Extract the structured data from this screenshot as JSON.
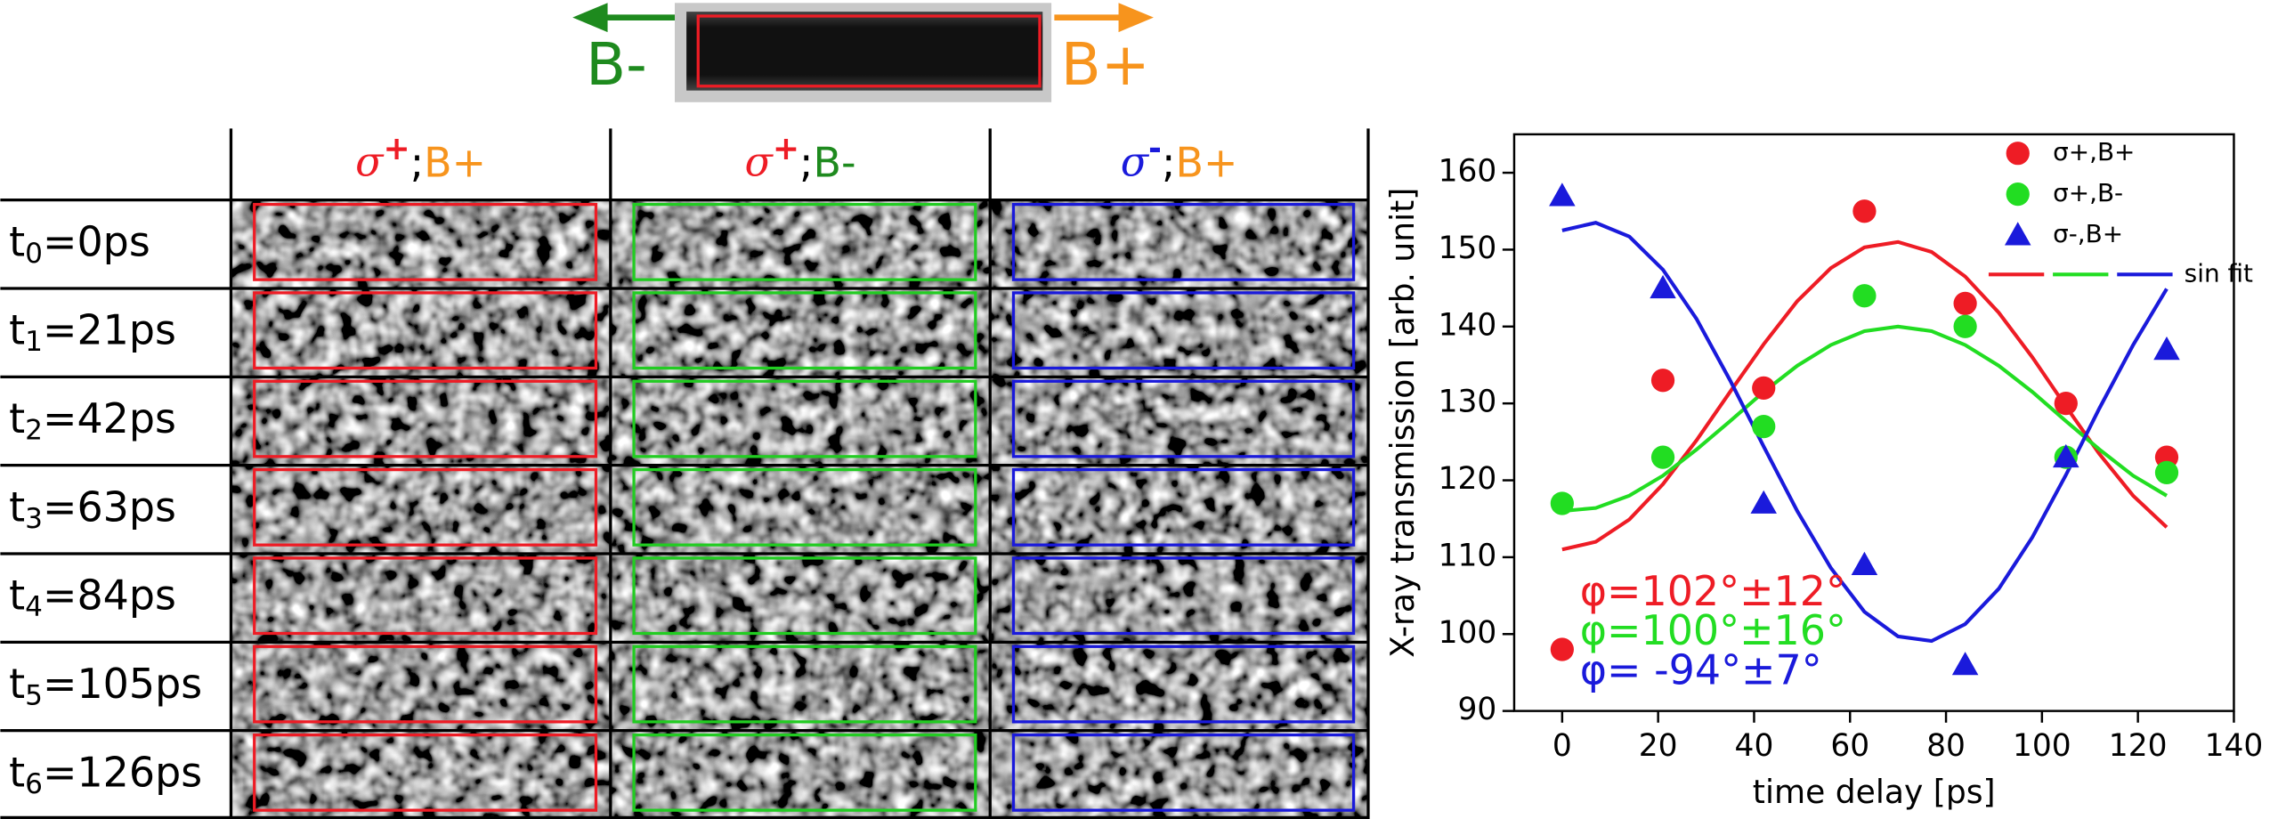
{
  "header": {
    "left_label": "B-",
    "right_label": "B+",
    "left_color": "#1e8a1e",
    "right_color": "#f7941d"
  },
  "table": {
    "columns": [
      {
        "sigma": "σ",
        "sign": "+",
        "sep": ";",
        "field": "B+",
        "sigma_color": "#ee1c25",
        "field_color": "#f7941d",
        "color": "#ee1c25"
      },
      {
        "sigma": "σ",
        "sign": "+",
        "sep": ";",
        "field": "B-",
        "sigma_color": "#ee1c25",
        "field_color": "#1e8a1e",
        "color": "#22cc22"
      },
      {
        "sigma": "σ",
        "sign": "-",
        "sep": ";",
        "field": "B+",
        "sigma_color": "#1a1adb",
        "field_color": "#f7941d",
        "color": "#1a1adb"
      }
    ],
    "rows": [
      {
        "t": "t",
        "index": "0",
        "delay": "=0ps"
      },
      {
        "t": "t",
        "index": "1",
        "delay": "=21ps"
      },
      {
        "t": "t",
        "index": "2",
        "delay": "=42ps"
      },
      {
        "t": "t",
        "index": "3",
        "delay": "=63ps"
      },
      {
        "t": "t",
        "index": "4",
        "delay": "=84ps"
      },
      {
        "t": "t",
        "index": "5",
        "delay": "=105ps"
      },
      {
        "t": "t",
        "index": "6",
        "delay": "=126ps"
      }
    ]
  },
  "chart_data": {
    "type": "scatter",
    "x_label": "time delay [ps]",
    "y_label": "X-ray transmission [arb. unit]",
    "x": [
      0,
      21,
      42,
      63,
      84,
      105,
      126
    ],
    "series": [
      {
        "name": "σ+,B+",
        "color": "#ee1c25",
        "marker": "circle",
        "values": [
          98,
          133,
          132,
          155,
          143,
          130,
          123
        ]
      },
      {
        "name": "σ+,B-",
        "color": "#22dd22",
        "marker": "circle",
        "values": [
          117,
          123,
          127,
          144,
          140,
          123,
          121
        ]
      },
      {
        "name": "σ-,B+",
        "color": "#1a1adb",
        "marker": "triangle",
        "values": [
          157,
          145,
          117,
          109,
          96,
          123,
          137
        ]
      }
    ],
    "fits": {
      "name": "sin fit",
      "x": [
        0,
        7,
        14,
        21,
        28,
        35,
        42,
        49,
        56,
        63,
        70,
        77,
        84,
        91,
        98,
        105,
        112,
        119,
        126
      ],
      "series": [
        {
          "color": "#ee1c25",
          "values": [
            111,
            112,
            114.9,
            119.5,
            125.2,
            131.5,
            137.7,
            143.3,
            147.6,
            150.3,
            151,
            149.7,
            146.5,
            141.8,
            136,
            129.6,
            123.4,
            118,
            113.9
          ]
        },
        {
          "color": "#22dd22",
          "values": [
            116,
            116.4,
            118,
            120.6,
            124,
            127.7,
            131.5,
            134.9,
            137.6,
            139.4,
            140,
            139.4,
            137.6,
            134.9,
            131.5,
            127.7,
            124,
            120.6,
            118
          ]
        },
        {
          "color": "#1a1adb",
          "values": [
            152.5,
            153.5,
            151.7,
            147.4,
            141,
            133,
            124.4,
            116,
            108.6,
            102.9,
            99.7,
            99.1,
            101.3,
            105.9,
            112.6,
            120.7,
            129.4,
            137.6,
            144.9
          ]
        }
      ]
    },
    "annotations": [
      {
        "text": "φ=102°±12°",
        "color": "#ee1c25"
      },
      {
        "text": "φ=100°±16°",
        "color": "#22dd22"
      },
      {
        "text": "φ= -94°±7°",
        "color": "#1a1adb"
      }
    ],
    "xlim": [
      -10,
      140
    ],
    "ylim": [
      90,
      165
    ],
    "xticks": [
      0,
      20,
      40,
      60,
      80,
      100,
      120,
      140
    ],
    "yticks": [
      90,
      100,
      110,
      120,
      130,
      140,
      150,
      160
    ]
  }
}
